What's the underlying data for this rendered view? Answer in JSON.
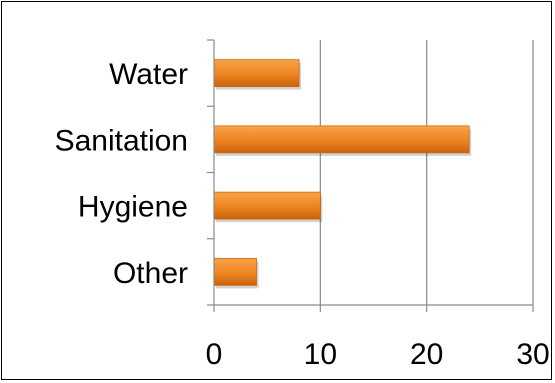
{
  "chart_data": {
    "type": "bar",
    "orientation": "horizontal",
    "categories": [
      "Water",
      "Sanitation",
      "Hygiene",
      "Other"
    ],
    "values": [
      8,
      24,
      10,
      4
    ],
    "xlim": [
      0,
      30
    ],
    "xticks": [
      "0",
      "10",
      "20",
      "30"
    ],
    "grid": "vertical",
    "legend": "none",
    "bar_color": "#f28c28",
    "bar_color_dark": "#d46a10"
  }
}
